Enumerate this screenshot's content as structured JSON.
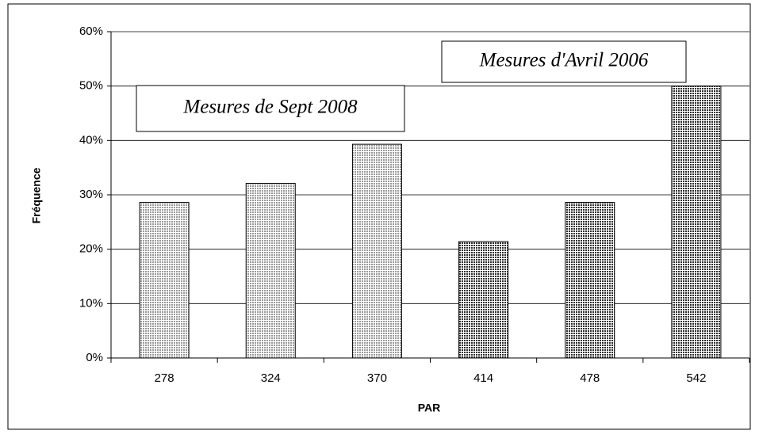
{
  "chart_data": {
    "type": "bar",
    "categories": [
      "278",
      "324",
      "370",
      "414",
      "478",
      "542"
    ],
    "values": [
      28.6,
      32.1,
      39.3,
      21.4,
      28.6,
      50
    ],
    "colors": [
      "#9a9a9a",
      "#9a9a9a",
      "#9a9a9a",
      "#2e2e2e",
      "#2e2e2e",
      "#2e2e2e"
    ],
    "xlabel": "PAR",
    "ylabel": "Fréquence",
    "ylim": [
      0,
      60
    ],
    "yticks": [
      {
        "value": 0,
        "label": "0%"
      },
      {
        "value": 10,
        "label": "10%"
      },
      {
        "value": 20,
        "label": "20%"
      },
      {
        "value": 30,
        "label": "30%"
      },
      {
        "value": 40,
        "label": "40%"
      },
      {
        "value": 50,
        "label": "50%"
      },
      {
        "value": 60,
        "label": "60%"
      }
    ],
    "grid": true,
    "annotations": [
      "Mesures de Sept 2008",
      "Mesures d'Avril 2006"
    ]
  }
}
